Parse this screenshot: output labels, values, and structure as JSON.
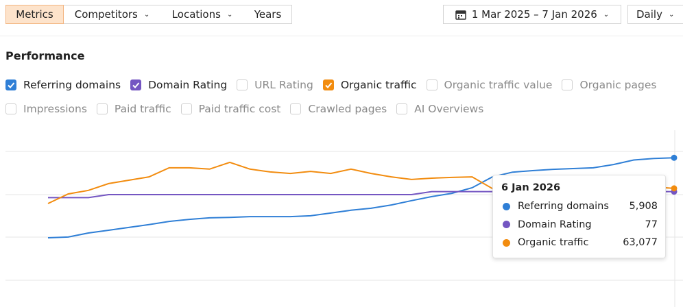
{
  "toolbar": {
    "tabs": [
      {
        "label": "Metrics",
        "active": true
      },
      {
        "label": "Competitors",
        "dropdown": true
      },
      {
        "label": "Locations",
        "dropdown": true
      },
      {
        "label": "Years"
      }
    ],
    "date_range": "1 Mar 2025 – 7 Jan 2026",
    "interval": "Daily"
  },
  "section_title": "Performance",
  "metrics": [
    [
      {
        "label": "Referring domains",
        "checked": true,
        "color": "#2f7fd6"
      },
      {
        "label": "Domain Rating",
        "checked": true,
        "color": "#7456c2"
      },
      {
        "label": "URL Rating",
        "checked": false
      },
      {
        "label": "Organic traffic",
        "checked": true,
        "color": "#f28c0f"
      },
      {
        "label": "Organic traffic value",
        "checked": false
      },
      {
        "label": "Organic pages",
        "checked": false
      }
    ],
    [
      {
        "label": "Impressions",
        "checked": false
      },
      {
        "label": "Paid traffic",
        "checked": false
      },
      {
        "label": "Paid traffic cost",
        "checked": false
      },
      {
        "label": "Crawled pages",
        "checked": false
      },
      {
        "label": "AI Overviews",
        "checked": false
      }
    ]
  ],
  "chart_data": {
    "type": "line",
    "grid": true,
    "series": [
      {
        "name": "Referring domains",
        "color": "#2f7fd6",
        "ylim": [
          0,
          7000
        ],
        "values": [
          2740,
          2770,
          2930,
          3040,
          3150,
          3260,
          3390,
          3470,
          3530,
          3550,
          3580,
          3580,
          3580,
          3610,
          3720,
          3830,
          3910,
          4040,
          4210,
          4370,
          4500,
          4720,
          5150,
          5340,
          5400,
          5450,
          5480,
          5510,
          5640,
          5820,
          5880,
          5908
        ]
      },
      {
        "name": "Domain Rating",
        "color": "#7456c2",
        "ylim": [
          0,
          118
        ],
        "values": [
          73,
          73,
          73,
          75,
          75,
          75,
          75,
          75,
          75,
          75,
          75,
          75,
          75,
          75,
          75,
          75,
          75,
          75,
          75,
          77,
          77,
          77,
          77,
          77,
          77,
          77,
          77,
          77,
          77,
          77,
          77,
          77
        ]
      },
      {
        "name": "Organic traffic",
        "color": "#f28c0f",
        "ylim": [
          0,
          94000
        ],
        "values": [
          55000,
          60100,
          62000,
          65600,
          67400,
          69200,
          74000,
          74000,
          73300,
          76900,
          73300,
          71800,
          71000,
          72100,
          71000,
          73300,
          71000,
          69200,
          67800,
          68500,
          68900,
          69200,
          63000,
          65600,
          66700,
          67000,
          66300,
          65600,
          64900,
          64100,
          63800,
          63077
        ]
      }
    ],
    "tooltip": {
      "date": "6 Jan 2026",
      "rows": [
        {
          "value": 5908,
          "label": "5,908"
        },
        {
          "value": 77
        },
        {
          "value": 63077,
          "label": "63,077"
        }
      ]
    }
  }
}
